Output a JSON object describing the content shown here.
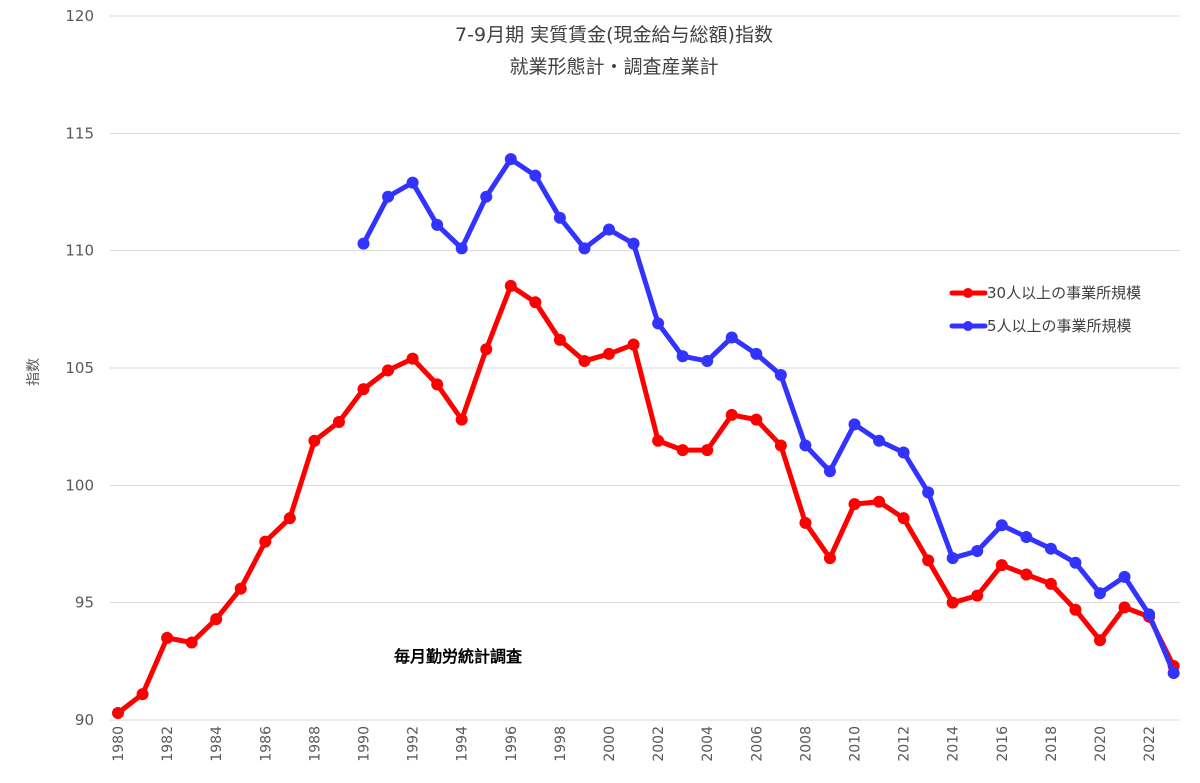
{
  "chart_data": {
    "type": "line",
    "title": "7-9月期 実質賃金(現金給与総額)指数",
    "subtitle": "就業形態計・調査産業計",
    "ylabel": "指数",
    "xlabel": "",
    "ylim": [
      90,
      120
    ],
    "yticks": [
      90,
      95,
      100,
      105,
      110,
      115,
      120
    ],
    "xlim": [
      1980,
      2023
    ],
    "xticks": [
      1980,
      1982,
      1984,
      1986,
      1988,
      1990,
      1992,
      1994,
      1996,
      1998,
      2000,
      2002,
      2004,
      2006,
      2008,
      2010,
      2012,
      2014,
      2016,
      2018,
      2020,
      2022
    ],
    "grid": true,
    "legend_position": "right",
    "annotation": "毎月勤労統計調査",
    "series": [
      {
        "name": "30人以上の事業所規模",
        "color": "#ff0000",
        "x": [
          1980,
          1981,
          1982,
          1983,
          1984,
          1985,
          1986,
          1987,
          1988,
          1989,
          1990,
          1991,
          1992,
          1993,
          1994,
          1995,
          1996,
          1997,
          1998,
          1999,
          2000,
          2001,
          2002,
          2003,
          2004,
          2005,
          2006,
          2007,
          2008,
          2009,
          2010,
          2011,
          2012,
          2013,
          2014,
          2015,
          2016,
          2017,
          2018,
          2019,
          2020,
          2021,
          2022,
          2023
        ],
        "values": [
          90.3,
          91.1,
          93.5,
          93.3,
          94.3,
          95.6,
          97.6,
          98.6,
          101.9,
          102.7,
          104.1,
          104.9,
          105.4,
          104.3,
          102.8,
          105.8,
          108.5,
          107.8,
          106.2,
          105.3,
          105.6,
          106.0,
          101.9,
          101.5,
          101.5,
          103.0,
          102.8,
          101.7,
          98.4,
          96.9,
          99.2,
          99.3,
          98.6,
          96.8,
          95.0,
          95.3,
          96.6,
          96.2,
          95.8,
          94.7,
          93.4,
          94.8,
          94.4,
          92.3
        ]
      },
      {
        "name": "5人以上の事業所規模",
        "color": "#3333ff",
        "x": [
          1990,
          1991,
          1992,
          1993,
          1994,
          1995,
          1996,
          1997,
          1998,
          1999,
          2000,
          2001,
          2002,
          2003,
          2004,
          2005,
          2006,
          2007,
          2008,
          2009,
          2010,
          2011,
          2012,
          2013,
          2014,
          2015,
          2016,
          2017,
          2018,
          2019,
          2020,
          2021,
          2022,
          2023
        ],
        "values": [
          110.3,
          112.3,
          112.9,
          111.1,
          110.1,
          112.3,
          113.9,
          113.2,
          111.4,
          110.1,
          110.9,
          110.3,
          106.9,
          105.5,
          105.3,
          106.3,
          105.6,
          104.7,
          101.7,
          100.6,
          102.6,
          101.9,
          101.4,
          99.7,
          96.9,
          97.2,
          98.3,
          97.8,
          97.3,
          96.7,
          95.4,
          96.1,
          94.5,
          92.0
        ]
      }
    ]
  }
}
